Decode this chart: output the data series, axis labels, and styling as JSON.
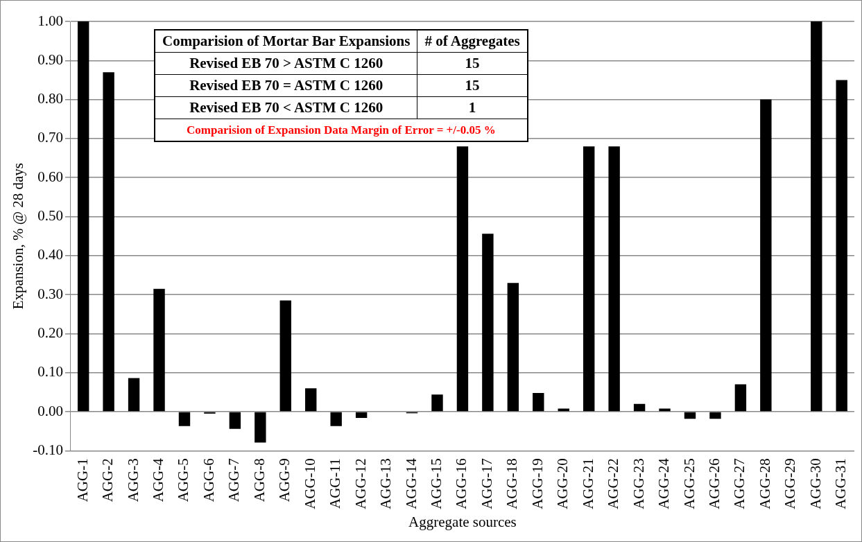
{
  "chart_data": {
    "type": "bar",
    "xlabel": "Aggregate sources",
    "ylabel": "Expansion, % @ 28 days",
    "categories": [
      "AGG-1",
      "AGG-2",
      "AGG-3",
      "AGG-4",
      "AGG-5",
      "AGG-6",
      "AGG-7",
      "AGG-8",
      "AGG-9",
      "AGG-10",
      "AGG-11",
      "AGG-12",
      "AGG-13",
      "AGG-14",
      "AGG-15",
      "AGG-16",
      "AGG-17",
      "AGG-18",
      "AGG-19",
      "AGG-20",
      "AGG-21",
      "AGG-22",
      "AGG-23",
      "AGG-24",
      "AGG-25",
      "AGG-26",
      "AGG-27",
      "AGG-28",
      "AGG-29",
      "AGG-30",
      "AGG-31"
    ],
    "values": [
      1.0,
      0.87,
      0.086,
      0.315,
      -0.037,
      -0.005,
      -0.044,
      -0.079,
      0.285,
      0.06,
      -0.037,
      -0.016,
      0,
      -0.004,
      0.044,
      0.68,
      0.456,
      0.33,
      0.048,
      0.008,
      0.68,
      0.68,
      0.02,
      0.008,
      -0.018,
      -0.018,
      0.07,
      0.8,
      null,
      1.0,
      0.85
    ],
    "color": "#000000",
    "ylim": [
      -0.1,
      1.0
    ],
    "yticks": [
      {
        "value": -0.1,
        "label": "-0.10"
      },
      {
        "value": 0,
        "label": "0.00"
      },
      {
        "value": 0.1,
        "label": "0.10"
      },
      {
        "value": 0.2,
        "label": "0.20"
      },
      {
        "value": 0.3,
        "label": "0.30"
      },
      {
        "value": 0.4,
        "label": "0.40"
      },
      {
        "value": 0.5,
        "label": "0.50"
      },
      {
        "value": 0.6,
        "label": "0.60"
      },
      {
        "value": 0.7,
        "label": "0.70"
      },
      {
        "value": 0.8,
        "label": "0.80"
      },
      {
        "value": 0.9,
        "label": "0.90"
      },
      {
        "value": 1.0,
        "label": "1.00"
      }
    ],
    "grid": "y",
    "legend": false,
    "annotations": [
      "Comparision of Mortar Bar Expansions",
      "# of Aggregates",
      "Revised EB 70 > ASTM C 1260",
      "15",
      "Revised EB 70 = ASTM C 1260",
      "15",
      "Revised EB 70 < ASTM C 1260",
      "1",
      "Comparision of Expansion Data Margin of Error = +/-0.05 %"
    ]
  }
}
